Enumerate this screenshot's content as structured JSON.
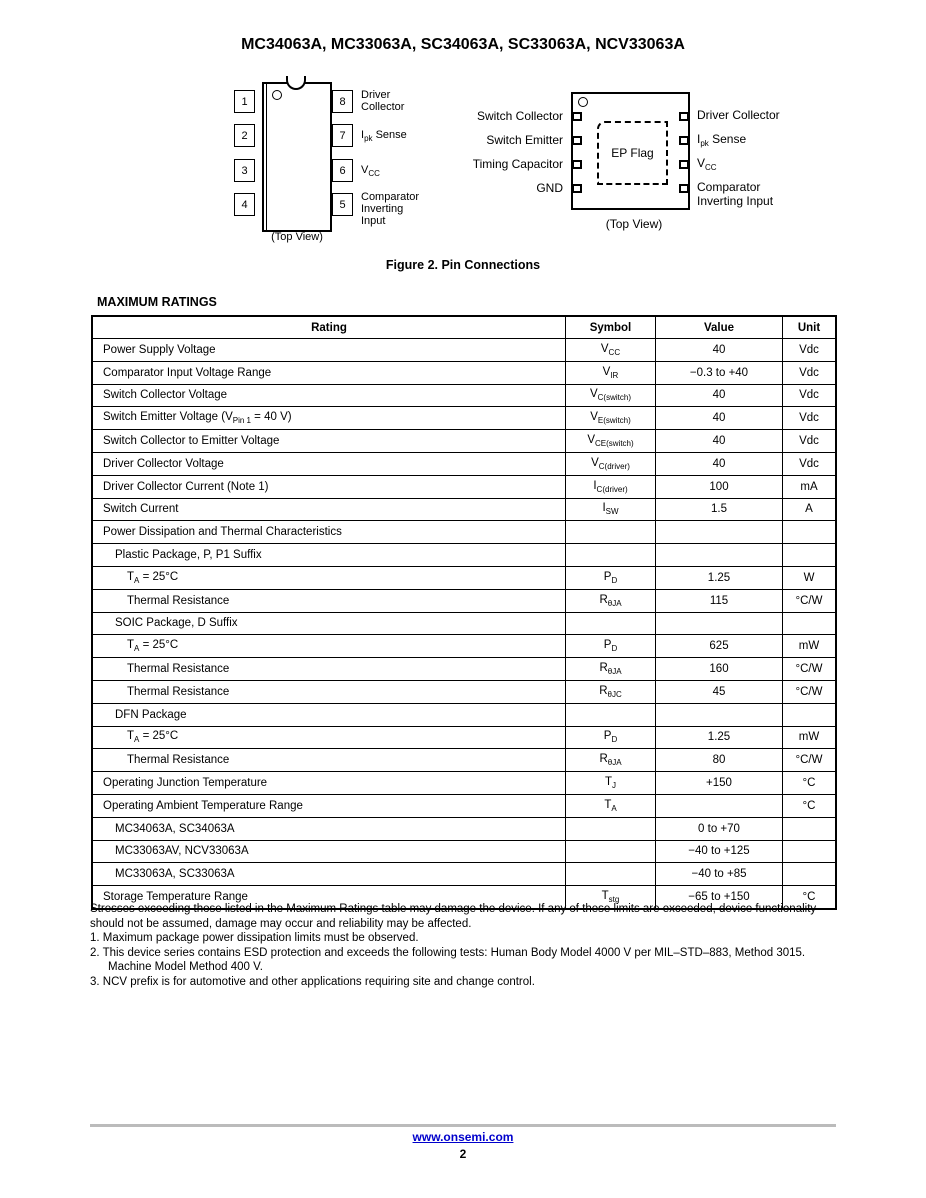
{
  "header": {
    "title": "MC34063A, MC33063A, SC34063A, SC33063A, NCV33063A"
  },
  "dip": {
    "left_pins": [
      {
        "num": "1",
        "label": "Switch\nCollector"
      },
      {
        "num": "2",
        "label": "Switch\nEmitter"
      },
      {
        "num": "3",
        "label": "Timing\nCapacitor"
      },
      {
        "num": "4",
        "label": "GND"
      }
    ],
    "right_pins": [
      {
        "num": "8",
        "label": "Driver\nCollector"
      },
      {
        "num": "7",
        "label": "I|pk| Sense"
      },
      {
        "num": "6",
        "label": "V|CC|"
      },
      {
        "num": "5",
        "label": "Comparator\nInverting\nInput"
      }
    ],
    "view": "(Top View)"
  },
  "dfn": {
    "left_pins": [
      "Switch Collector",
      "Switch Emitter",
      "Timing Capacitor",
      "GND"
    ],
    "right_pins": [
      "Driver Collector",
      "I|pk| Sense",
      "V|CC|",
      "Comparator\nInverting Input"
    ],
    "ep": "EP Flag",
    "view": "(Top View)"
  },
  "figure_caption": "Figure 2. Pin Connections",
  "ratings": {
    "heading": "MAXIMUM RATINGS",
    "columns": [
      "Rating",
      "Symbol",
      "Value",
      "Unit"
    ],
    "rows": [
      {
        "rating": "Power Supply Voltage",
        "indent": 0,
        "symbol": "V|CC|",
        "value": "40",
        "unit": "Vdc"
      },
      {
        "rating": "Comparator Input Voltage Range",
        "indent": 0,
        "symbol": "V|IR|",
        "value": "−0.3 to +40",
        "unit": "Vdc"
      },
      {
        "rating": "Switch Collector Voltage",
        "indent": 0,
        "symbol": "V|C(switch)|",
        "value": "40",
        "unit": "Vdc"
      },
      {
        "rating": "Switch Emitter Voltage (V|Pin 1| = 40 V)",
        "indent": 0,
        "symbol": "V|E(switch)|",
        "value": "40",
        "unit": "Vdc"
      },
      {
        "rating": "Switch Collector to Emitter Voltage",
        "indent": 0,
        "symbol": "V|CE(switch)|",
        "value": "40",
        "unit": "Vdc"
      },
      {
        "rating": "Driver Collector Voltage",
        "indent": 0,
        "symbol": "V|C(driver)|",
        "value": "40",
        "unit": "Vdc"
      },
      {
        "rating": "Driver Collector Current (Note 1)",
        "indent": 0,
        "symbol": "I|C(driver)|",
        "value": "100",
        "unit": "mA"
      },
      {
        "rating": "Switch Current",
        "indent": 0,
        "symbol": "I|SW|",
        "value": "1.5",
        "unit": "A"
      },
      {
        "rating": "Power Dissipation and Thermal Characteristics",
        "indent": 0,
        "symbol": "",
        "value": "",
        "unit": ""
      },
      {
        "rating": "Plastic Package, P, P1 Suffix",
        "indent": 1,
        "symbol": "",
        "value": "",
        "unit": ""
      },
      {
        "rating": "T|A| = 25°C",
        "indent": 2,
        "symbol": "P|D|",
        "value": "1.25",
        "unit": "W"
      },
      {
        "rating": "Thermal Resistance",
        "indent": 2,
        "symbol": "R|θJA|",
        "value": "115",
        "unit": "°C/W"
      },
      {
        "rating": "SOIC Package, D Suffix",
        "indent": 1,
        "symbol": "",
        "value": "",
        "unit": ""
      },
      {
        "rating": "T|A| = 25°C",
        "indent": 2,
        "symbol": "P|D|",
        "value": "625",
        "unit": "mW"
      },
      {
        "rating": "Thermal Resistance",
        "indent": 2,
        "symbol": "R|θJA|",
        "value": "160",
        "unit": "°C/W"
      },
      {
        "rating": "Thermal Resistance",
        "indent": 2,
        "symbol": "R|θJC|",
        "value": "45",
        "unit": "°C/W"
      },
      {
        "rating": "DFN Package",
        "indent": 1,
        "symbol": "",
        "value": "",
        "unit": ""
      },
      {
        "rating": "T|A| = 25°C",
        "indent": 2,
        "symbol": "P|D|",
        "value": "1.25",
        "unit": "mW"
      },
      {
        "rating": "Thermal Resistance",
        "indent": 2,
        "symbol": "R|θJA|",
        "value": "80",
        "unit": "°C/W"
      },
      {
        "rating": "Operating Junction Temperature",
        "indent": 0,
        "symbol": "T|J|",
        "value": "+150",
        "unit": "°C"
      },
      {
        "rating": "Operating Ambient Temperature Range",
        "indent": 0,
        "symbol": "T|A|",
        "value": "",
        "unit": "°C"
      },
      {
        "rating": "MC34063A, SC34063A",
        "indent": 1,
        "symbol": "",
        "value": "0 to +70",
        "unit": ""
      },
      {
        "rating": "MC33063AV, NCV33063A",
        "indent": 1,
        "symbol": "",
        "value": "−40 to +125",
        "unit": ""
      },
      {
        "rating": "MC33063A, SC33063A",
        "indent": 1,
        "symbol": "",
        "value": "−40 to +85",
        "unit": ""
      },
      {
        "rating": "Storage Temperature Range",
        "indent": 0,
        "symbol": "T|stg|",
        "value": "−65 to +150",
        "unit": "°C"
      }
    ]
  },
  "notes": {
    "intro": "Stresses exceeding those listed in the Maximum Ratings table may damage the device. If any of these limits are exceeded, device functionality should not be assumed, damage may occur and reliability may be affected.",
    "items": [
      "1.  Maximum package power dissipation limits must be observed.",
      "2.  This device series contains ESD protection and exceeds the following tests:  Human Body Model 4000 V per MIL–STD–883, Method 3015. Machine Model Method 400 V.",
      "3.  NCV prefix is for automotive and other applications requiring site and change control."
    ]
  },
  "footer": {
    "url": "www.onsemi.com",
    "page": "2"
  }
}
